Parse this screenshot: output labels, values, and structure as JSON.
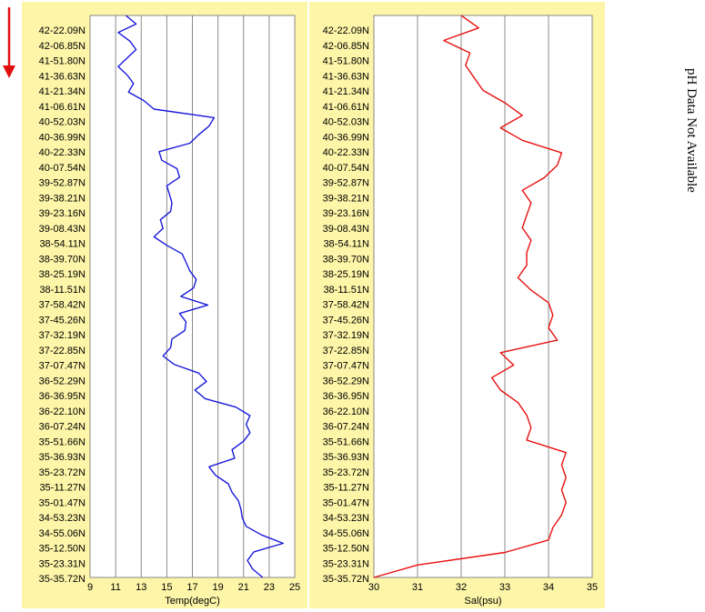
{
  "side_note": "pH Data Not Available",
  "colors": {
    "panel_bg": "#fdf5a8",
    "plot_bg": "#ffffff",
    "grid": "#8c8c8c",
    "arrow": "#e01010"
  },
  "chart_data": [
    {
      "type": "line",
      "title": "",
      "xlabel": "Temp(degC)",
      "ylabel": "",
      "xlim": [
        9,
        25
      ],
      "xticks": [
        9,
        11,
        13,
        15,
        17,
        19,
        21,
        23,
        25
      ],
      "y_tick_labels": [
        "42-22.09N",
        "42-06.85N",
        "41-51.80N",
        "41-36.63N",
        "41-21.34N",
        "41-06.61N",
        "40-52.03N",
        "40-36.99N",
        "40-22.33N",
        "40-07.54N",
        "39-52.87N",
        "39-38.21N",
        "39-23.16N",
        "39-08.43N",
        "38-54.11N",
        "38-39.70N",
        "38-25.19N",
        "38-11.51N",
        "37-58.42N",
        "37-45.26N",
        "37-32.19N",
        "37-22.85N",
        "37-07.47N",
        "36-52.29N",
        "36-36.95N",
        "36-22.10N",
        "36-07.24N",
        "35-51.66N",
        "35-36.93N",
        "35-23.72N",
        "35-11.27N",
        "35-01.47N",
        "34-53.23N",
        "34-55.06N",
        "35-12.50N",
        "35-23.31N",
        "35-35.72N"
      ],
      "grid": true,
      "series": [
        {
          "color": "#1a1adc",
          "values": [
            11.8,
            12.6,
            11.2,
            12.1,
            12.6,
            11.9,
            11.2,
            11.9,
            12.4,
            12.0,
            13.2,
            14.0,
            18.7,
            18.3,
            17.5,
            16.8,
            14.4,
            14.6,
            15.8,
            16.0,
            15.0,
            15.2,
            15.4,
            15.3,
            14.5,
            14.7,
            14.0,
            15.0,
            16.2,
            16.5,
            16.8,
            17.3,
            17.1,
            16.1,
            18.2,
            16.0,
            16.5,
            16.4,
            15.4,
            15.3,
            14.7,
            15.6,
            17.5,
            18.1,
            17.2,
            18.0,
            20.4,
            21.5,
            21.2,
            21.5,
            21.0,
            20.1,
            20.3,
            18.3,
            18.8,
            19.8,
            20.1,
            20.6,
            20.8,
            20.9,
            21.2,
            22.4,
            24.1,
            21.8,
            21.3,
            21.7,
            22.5
          ]
        }
      ]
    },
    {
      "type": "line",
      "title": "",
      "xlabel": "Sal(psu)",
      "ylabel": "",
      "xlim": [
        30,
        35
      ],
      "xticks": [
        30,
        31,
        32,
        33,
        34,
        35
      ],
      "y_tick_labels": [
        "42-22.09N",
        "42-06.85N",
        "41-51.80N",
        "41-36.63N",
        "41-21.34N",
        "41-06.61N",
        "40-52.03N",
        "40-36.99N",
        "40-22.33N",
        "40-07.54N",
        "39-52.87N",
        "39-38.21N",
        "39-23.16N",
        "39-08.43N",
        "38-54.11N",
        "38-39.70N",
        "38-25.19N",
        "38-11.51N",
        "37-58.42N",
        "37-45.26N",
        "37-32.19N",
        "37-22.85N",
        "37-07.47N",
        "36-52.29N",
        "36-36.95N",
        "36-22.10N",
        "36-07.24N",
        "35-51.66N",
        "35-36.93N",
        "35-23.72N",
        "35-11.27N",
        "35-01.47N",
        "34-53.23N",
        "34-55.06N",
        "35-12.50N",
        "35-23.31N",
        "35-35.72N"
      ],
      "grid": true,
      "series": [
        {
          "color": "#e81010",
          "values": [
            32.0,
            32.4,
            31.6,
            32.2,
            32.1,
            32.3,
            32.5,
            33.0,
            33.4,
            32.9,
            33.4,
            34.3,
            34.2,
            33.9,
            33.4,
            33.6,
            33.5,
            33.4,
            33.6,
            33.5,
            33.5,
            33.3,
            33.6,
            34.0,
            34.1,
            34.0,
            34.2,
            32.9,
            33.2,
            32.7,
            32.9,
            33.3,
            33.5,
            33.6,
            33.5,
            34.4,
            34.3,
            34.4,
            34.3,
            34.4,
            34.3,
            34.1,
            34.0,
            33.0,
            31.0,
            30.0
          ]
        }
      ]
    }
  ]
}
